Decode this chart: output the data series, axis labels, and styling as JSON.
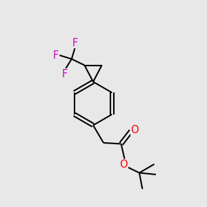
{
  "background_color": "#e8e8e8",
  "bond_color": "#000000",
  "fluorine_color": "#cc00cc",
  "oxygen_color": "#ff0000",
  "line_width": 1.5,
  "font_size": 10.5,
  "figsize": [
    3.0,
    3.0
  ],
  "dpi": 100,
  "xlim": [
    0,
    10
  ],
  "ylim": [
    0,
    10
  ]
}
